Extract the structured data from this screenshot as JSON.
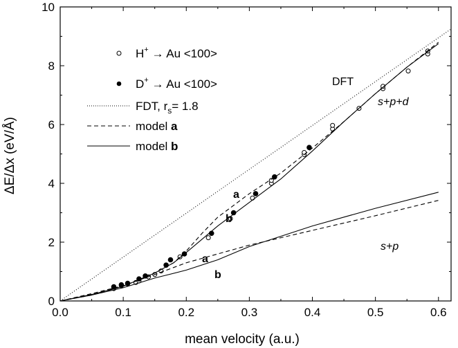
{
  "chart_data": {
    "type": "scatter",
    "xlabel": "mean velocity (a.u.)",
    "ylabel": "ΔE/Δx (eV/Å)",
    "xlim": [
      0.0,
      0.62
    ],
    "ylim": [
      0,
      10
    ],
    "x_ticks": [
      "0.0",
      "0.1",
      "0.2",
      "0.3",
      "0.4",
      "0.5",
      "0.6"
    ],
    "y_ticks": [
      "0",
      "2",
      "4",
      "6",
      "8",
      "10"
    ],
    "x_tick_values": [
      0.0,
      0.1,
      0.2,
      0.3,
      0.4,
      0.5,
      0.6
    ],
    "y_tick_values": [
      0,
      2,
      4,
      6,
      8,
      10
    ],
    "grid": false,
    "legend_position": "top-left",
    "legend": {
      "h_label": "H",
      "h_sup": "+",
      "h_rest": " → Au <100>",
      "d_label": "D",
      "d_sup": "+",
      "d_rest": " → Au <100>",
      "fdt_label": "FDT, r",
      "fdt_sub": "s",
      "fdt_rest": "= 1.8",
      "model_a_text": "model ",
      "model_a_bold": "a",
      "model_b_text": "model ",
      "model_b_bold": "b"
    },
    "annotations": {
      "dft": "DFT",
      "spd": "s+p+d",
      "sp": "s+p",
      "a_upper": "a",
      "b_upper": "b",
      "a_lower": "a",
      "b_lower": "b"
    },
    "series": [
      {
        "name": "H+ → Au <100>",
        "style": "open-circle",
        "points": [
          [
            0.085,
            0.42
          ],
          [
            0.097,
            0.52
          ],
          [
            0.107,
            0.58
          ],
          [
            0.12,
            0.63
          ],
          [
            0.125,
            0.68
          ],
          [
            0.14,
            0.82
          ],
          [
            0.15,
            0.9
          ],
          [
            0.16,
            1.02
          ],
          [
            0.19,
            1.5
          ],
          [
            0.235,
            2.15
          ],
          [
            0.27,
            2.8
          ],
          [
            0.305,
            3.5
          ],
          [
            0.335,
            4.0
          ],
          [
            0.335,
            4.1
          ],
          [
            0.387,
            4.98
          ],
          [
            0.387,
            5.05
          ],
          [
            0.432,
            5.85
          ],
          [
            0.432,
            5.97
          ],
          [
            0.474,
            6.55
          ],
          [
            0.512,
            7.22
          ],
          [
            0.512,
            7.3
          ],
          [
            0.552,
            7.82
          ],
          [
            0.583,
            8.4
          ],
          [
            0.583,
            8.5
          ]
        ]
      },
      {
        "name": "D+ → Au <100>",
        "style": "filled-circle",
        "points": [
          [
            0.085,
            0.48
          ],
          [
            0.097,
            0.55
          ],
          [
            0.107,
            0.6
          ],
          [
            0.125,
            0.75
          ],
          [
            0.135,
            0.85
          ],
          [
            0.168,
            1.22
          ],
          [
            0.175,
            1.4
          ],
          [
            0.197,
            1.6
          ],
          [
            0.24,
            2.3
          ],
          [
            0.275,
            3.0
          ],
          [
            0.31,
            3.65
          ],
          [
            0.34,
            4.22
          ],
          [
            0.395,
            5.22
          ]
        ]
      },
      {
        "name": "FDT, rs= 1.8",
        "style": "dotted",
        "points": [
          [
            0.0,
            0.0
          ],
          [
            0.62,
            9.25
          ]
        ]
      },
      {
        "name": "model a (s+p+d)",
        "style": "dashed",
        "points": [
          [
            0.0,
            0.0
          ],
          [
            0.05,
            0.2
          ],
          [
            0.1,
            0.5
          ],
          [
            0.15,
            0.95
          ],
          [
            0.18,
            1.3
          ],
          [
            0.2,
            1.7
          ],
          [
            0.225,
            2.3
          ],
          [
            0.25,
            2.85
          ],
          [
            0.3,
            3.65
          ],
          [
            0.35,
            4.35
          ],
          [
            0.4,
            5.2
          ],
          [
            0.45,
            6.1
          ],
          [
            0.5,
            7.05
          ],
          [
            0.55,
            7.95
          ],
          [
            0.6,
            8.8
          ]
        ]
      },
      {
        "name": "model b (s+p+d)",
        "style": "solid",
        "points": [
          [
            0.0,
            0.0
          ],
          [
            0.05,
            0.22
          ],
          [
            0.1,
            0.5
          ],
          [
            0.15,
            0.95
          ],
          [
            0.18,
            1.3
          ],
          [
            0.2,
            1.65
          ],
          [
            0.225,
            2.1
          ],
          [
            0.25,
            2.55
          ],
          [
            0.3,
            3.35
          ],
          [
            0.35,
            4.15
          ],
          [
            0.4,
            5.1
          ],
          [
            0.45,
            6.1
          ],
          [
            0.5,
            7.05
          ],
          [
            0.55,
            7.95
          ],
          [
            0.6,
            8.75
          ]
        ]
      },
      {
        "name": "model a (s+p)",
        "style": "dashed",
        "points": [
          [
            0.0,
            0.0
          ],
          [
            0.05,
            0.25
          ],
          [
            0.1,
            0.52
          ],
          [
            0.15,
            0.9
          ],
          [
            0.2,
            1.3
          ],
          [
            0.25,
            1.6
          ],
          [
            0.3,
            1.9
          ],
          [
            0.4,
            2.4
          ],
          [
            0.5,
            2.9
          ],
          [
            0.6,
            3.42
          ]
        ]
      },
      {
        "name": "model b (s+p)",
        "style": "solid",
        "points": [
          [
            0.0,
            0.0
          ],
          [
            0.05,
            0.2
          ],
          [
            0.1,
            0.45
          ],
          [
            0.15,
            0.78
          ],
          [
            0.2,
            1.05
          ],
          [
            0.25,
            1.4
          ],
          [
            0.3,
            1.85
          ],
          [
            0.4,
            2.55
          ],
          [
            0.5,
            3.15
          ],
          [
            0.6,
            3.7
          ]
        ]
      }
    ]
  }
}
